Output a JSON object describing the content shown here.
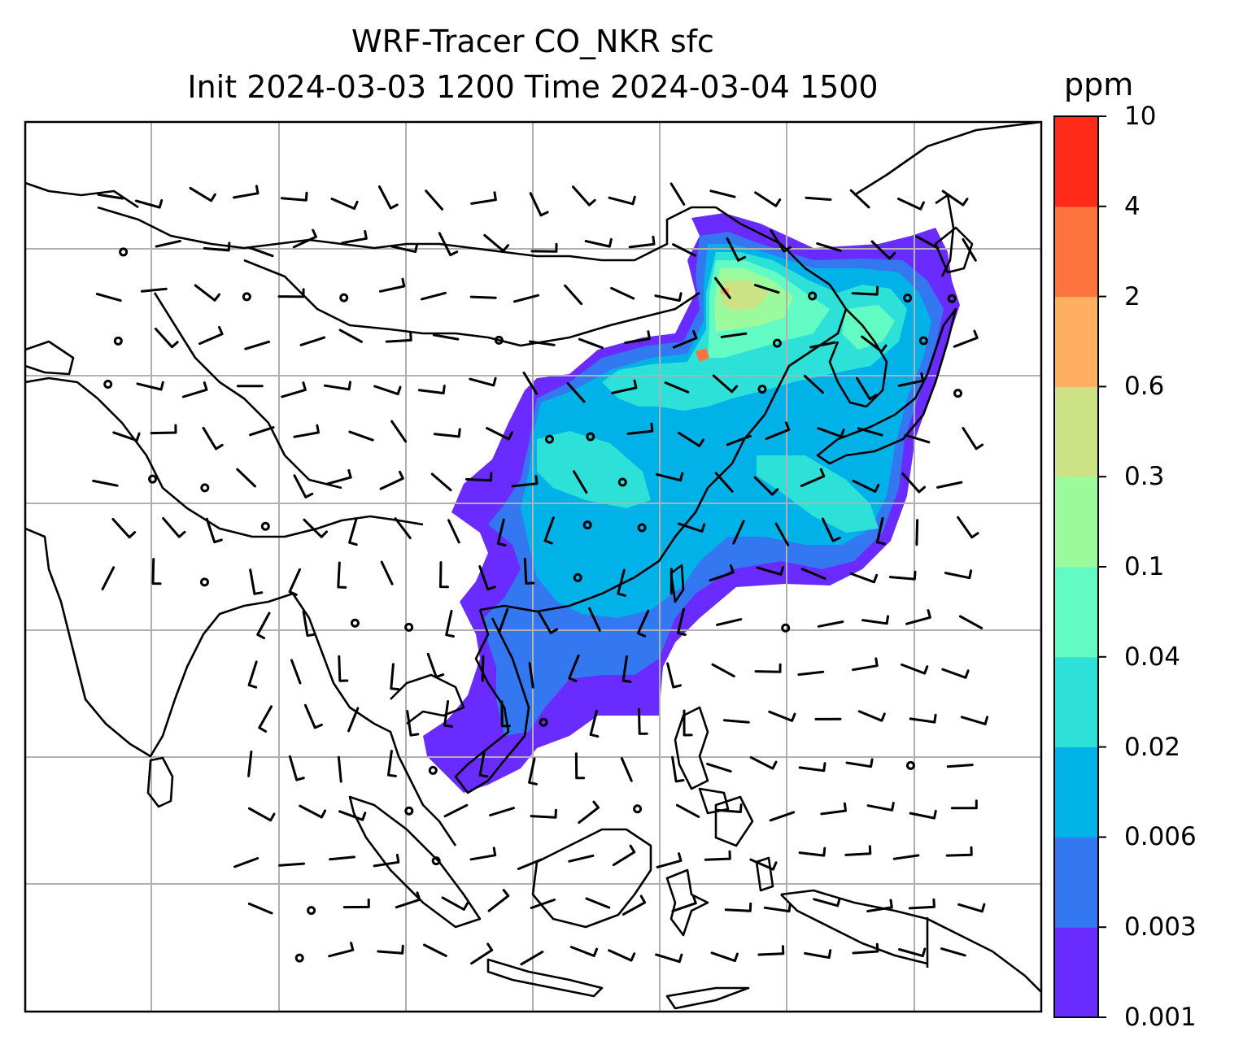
{
  "title": {
    "line1": "WRF-Tracer CO_NKR sfc",
    "line2": "Init 2024-03-03 1200 Time 2024-03-04 1500"
  },
  "colorbar": {
    "unit": "ppm",
    "ticks": [
      "0.001",
      "0.003",
      "0.006",
      "0.02",
      "0.04",
      "0.1",
      "0.3",
      "0.6",
      "2",
      "4",
      "10"
    ],
    "colors": [
      "#6a2bff",
      "#3377f1",
      "#00b2e8",
      "#2de1d9",
      "#63fbc4",
      "#9bfb9c",
      "#cde185",
      "#feaf60",
      "#ff733f",
      "#ff2a17"
    ]
  },
  "map": {
    "gridlines": true,
    "overlay": "wind barbs",
    "plume_color_levels": [
      "#6a2bff",
      "#3377f1",
      "#00b2e8",
      "#2de1d9",
      "#63fbc4",
      "#9bfb9c",
      "#cde185",
      "#feaf60",
      "#ff733f"
    ]
  }
}
